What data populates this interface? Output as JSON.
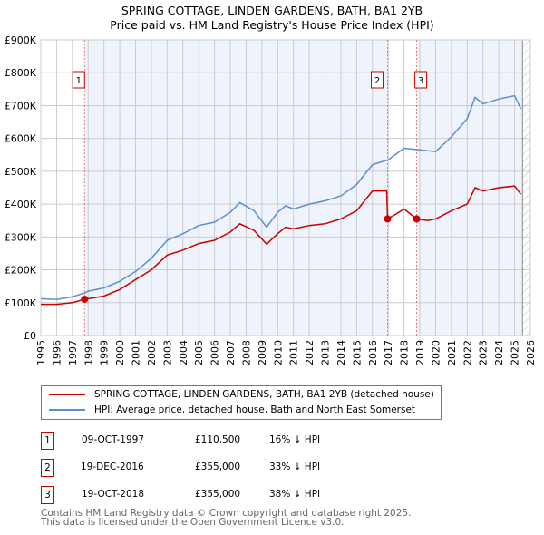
{
  "chart_data": {
    "type": "line",
    "title": "SPRING COTTAGE, LINDEN GARDENS, BATH, BA1 2YB",
    "subtitle": "Price paid vs. HM Land Registry's House Price Index (HPI)",
    "xlim": [
      1995,
      2026
    ],
    "ylim": [
      0,
      900000
    ],
    "x_ticks": [
      "1995",
      "1996",
      "1997",
      "1998",
      "1999",
      "2000",
      "2001",
      "2002",
      "2003",
      "2004",
      "2005",
      "2006",
      "2007",
      "2008",
      "2009",
      "2010",
      "2011",
      "2012",
      "2013",
      "2014",
      "2015",
      "2016",
      "2017",
      "2018",
      "2019",
      "2020",
      "2021",
      "2022",
      "2023",
      "2024",
      "2025",
      "2026"
    ],
    "y_ticks": [
      {
        "v": 0,
        "label": "£0"
      },
      {
        "v": 100000,
        "label": "£100K"
      },
      {
        "v": 200000,
        "label": "£200K"
      },
      {
        "v": 300000,
        "label": "£300K"
      },
      {
        "v": 400000,
        "label": "£400K"
      },
      {
        "v": 500000,
        "label": "£500K"
      },
      {
        "v": 600000,
        "label": "£600K"
      },
      {
        "v": 700000,
        "label": "£700K"
      },
      {
        "v": 800000,
        "label": "£800K"
      },
      {
        "v": 900000,
        "label": "£900K"
      }
    ],
    "grid": true,
    "series": [
      {
        "name": "SPRING COTTAGE, LINDEN GARDENS, BATH, BA1 2YB (detached house)",
        "color": "#cc0000",
        "x": [
          1995,
          1996,
          1997,
          1997.77,
          1998,
          1999,
          2000,
          2001,
          2002,
          2003,
          2004,
          2005,
          2006,
          2007,
          2007.6,
          2008.5,
          2009.3,
          2010,
          2010.5,
          2011,
          2012,
          2013,
          2014,
          2015,
          2016,
          2016.9,
          2016.96,
          2017.5,
          2018,
          2018.8,
          2019.5,
          2020,
          2021,
          2022,
          2022.5,
          2023,
          2024,
          2025,
          2025.4
        ],
        "y": [
          95000,
          95000,
          100000,
          110500,
          112000,
          120000,
          140000,
          170000,
          200000,
          245000,
          260000,
          280000,
          290000,
          315000,
          340000,
          320000,
          278000,
          310000,
          330000,
          325000,
          335000,
          340000,
          355000,
          380000,
          440000,
          440000,
          355000,
          370000,
          385000,
          355000,
          350000,
          355000,
          380000,
          400000,
          450000,
          440000,
          450000,
          455000,
          430000
        ]
      },
      {
        "name": "HPI: Average price, detached house, Bath and North East Somerset",
        "color": "#5b8fd0",
        "x": [
          1995,
          1996,
          1997,
          1997.8,
          1998,
          1999,
          2000,
          2001,
          2002,
          2003,
          2004,
          2005,
          2006,
          2007,
          2007.6,
          2008.5,
          2009.3,
          2010,
          2010.5,
          2011,
          2012,
          2013,
          2014,
          2015,
          2016,
          2017,
          2018,
          2019,
          2020,
          2021,
          2022,
          2022.5,
          2023,
          2024,
          2025,
          2025.4
        ],
        "y": [
          112000,
          110000,
          118000,
          130000,
          135000,
          145000,
          165000,
          195000,
          235000,
          290000,
          310000,
          335000,
          345000,
          375000,
          405000,
          380000,
          330000,
          375000,
          395000,
          385000,
          400000,
          410000,
          425000,
          460000,
          520000,
          535000,
          570000,
          565000,
          560000,
          605000,
          660000,
          725000,
          705000,
          720000,
          730000,
          690000
        ]
      }
    ],
    "sales": [
      {
        "id": "1",
        "x": 1997.77,
        "y": 110500
      },
      {
        "id": "2",
        "x": 2016.96,
        "y": 355000
      },
      {
        "id": "3",
        "x": 2018.8,
        "y": 355000
      }
    ],
    "legend_placement": "below"
  },
  "table": [
    {
      "id": "1",
      "date": "09-OCT-1997",
      "price": "£110,500",
      "hpi": "16% ↓ HPI"
    },
    {
      "id": "2",
      "date": "19-DEC-2016",
      "price": "£355,000",
      "hpi": "33% ↓ HPI"
    },
    {
      "id": "3",
      "date": "19-OCT-2018",
      "price": "£355,000",
      "hpi": "38% ↓ HPI"
    }
  ],
  "footer": {
    "line1": "Contains HM Land Registry data © Crown copyright and database right 2025.",
    "line2": "This data is licensed under the Open Government Licence v3.0."
  }
}
